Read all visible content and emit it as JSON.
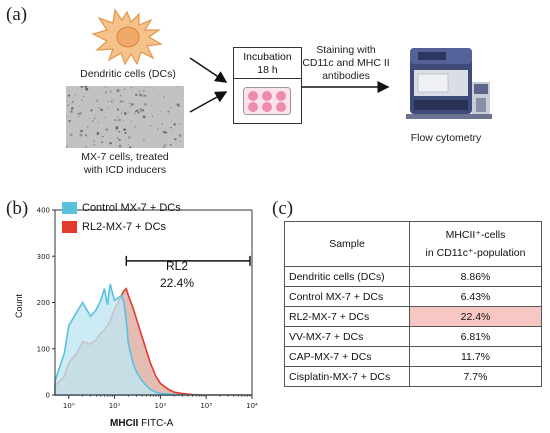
{
  "panels": {
    "a": "(a)",
    "b": "(b)",
    "c": "(c)"
  },
  "schematic": {
    "dc_label": "Dendritic cells (DCs)",
    "mx7_label_line1": "MX-7 cells, treated",
    "mx7_label_line2": "with ICD inducers",
    "incubation_title": "Incubation",
    "incubation_time": "18 h",
    "staining_line1": "Staining with",
    "staining_line2": "CD11c and MHC II",
    "staining_line3": "antibodies",
    "flow_label": "Flow cytometry"
  },
  "histogram": {
    "legend": [
      {
        "name": "Control MX-7 + DCs",
        "color": "#5bc0e0"
      },
      {
        "name": "RL2-MX-7 + DCs",
        "color": "#e23b2c"
      }
    ],
    "gate_name": "RL2",
    "gate_value": "22.4%",
    "ylabel": "Count",
    "xlabel_bold": "MHCII",
    "xlabel_rest": "FITC-A"
  },
  "chart_data": {
    "type": "area",
    "x_scale": "log",
    "xlim": [
      0.5,
      10000
    ],
    "ylim": [
      0,
      400
    ],
    "y_ticks": [
      "0",
      "100",
      "200",
      "300",
      "400"
    ],
    "x_ticks": [
      "10⁰",
      "10¹",
      "10²",
      "10³",
      "10⁴"
    ],
    "x": [
      0.5,
      0.8,
      1,
      1.5,
      2,
      3,
      4,
      5,
      6,
      7,
      8,
      9,
      10,
      12,
      14,
      16,
      18,
      20,
      25,
      30,
      40,
      50,
      60,
      80,
      100,
      150,
      200,
      300,
      500,
      1000,
      10000
    ],
    "series": [
      {
        "name": "Control MX-7 + DCs",
        "values": [
          30,
          90,
          150,
          180,
          200,
          170,
          185,
          205,
          230,
          195,
          240,
          220,
          205,
          210,
          215,
          200,
          160,
          110,
          70,
          50,
          30,
          20,
          12,
          6,
          3,
          2,
          1,
          0,
          0,
          0,
          0
        ]
      },
      {
        "name": "RL2-MX-7 + DCs",
        "values": [
          20,
          40,
          70,
          90,
          115,
          110,
          120,
          135,
          140,
          150,
          160,
          175,
          185,
          200,
          215,
          225,
          230,
          215,
          190,
          165,
          125,
          95,
          70,
          40,
          25,
          12,
          6,
          3,
          1,
          0,
          0
        ]
      }
    ],
    "gate": {
      "start": 18,
      "end": 10000,
      "y": 290
    }
  },
  "table": {
    "headers": [
      "Sample",
      "MHCII⁺-cells",
      "in CD11c⁺-population"
    ],
    "rows": [
      {
        "sample": "Dendritic cells (DCs)",
        "value": "8.86%"
      },
      {
        "sample": "Control MX-7 + DCs",
        "value": "6.43%"
      },
      {
        "sample": "RL2-MX-7 + DCs",
        "value": "22.4%",
        "highlight": true
      },
      {
        "sample": "VV-MX-7 + DCs",
        "value": "6.81%"
      },
      {
        "sample": "CAP-MX-7 + DCs",
        "value": "11.7%"
      },
      {
        "sample": "Cisplatin-MX-7 + DCs",
        "value": "7.7%"
      }
    ]
  }
}
